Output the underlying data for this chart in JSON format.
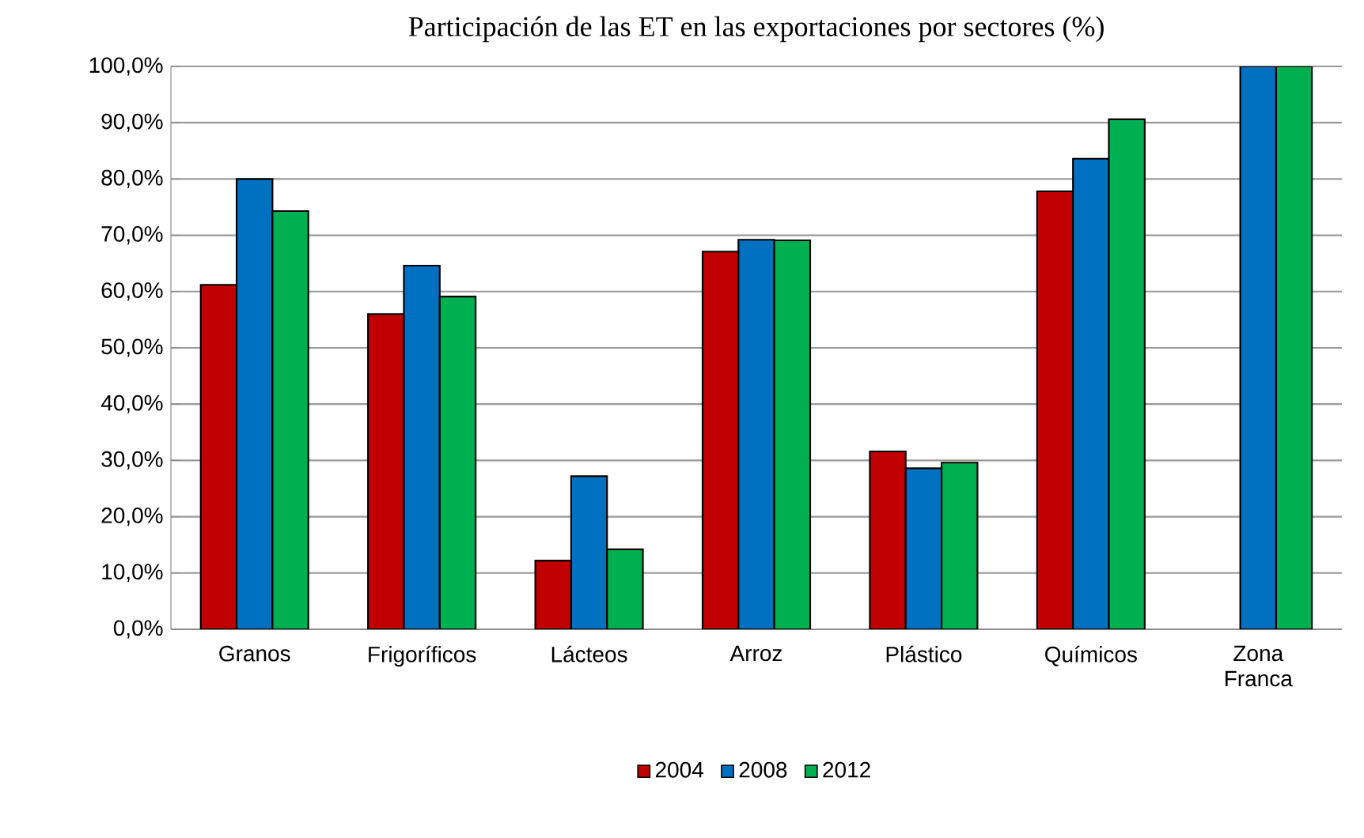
{
  "chart_data": {
    "type": "bar",
    "title": "Participación de las ET en las exportaciones por sectores (%)",
    "categories": [
      "Granos",
      "Frigoríficos",
      "Lácteos",
      "Arroz",
      "Plástico",
      "Químicos",
      "Zona Franca"
    ],
    "series": [
      {
        "name": "2004",
        "color": "#c00000",
        "values": [
          61.2,
          56.0,
          12.2,
          67.1,
          31.6,
          77.8,
          null
        ]
      },
      {
        "name": "2008",
        "color": "#0070c0",
        "values": [
          80.0,
          64.6,
          27.2,
          69.2,
          28.6,
          83.6,
          100.0
        ]
      },
      {
        "name": "2012",
        "color": "#00b050",
        "values": [
          74.3,
          59.1,
          14.2,
          69.1,
          29.6,
          90.6,
          100.0
        ]
      }
    ],
    "ylim": [
      0,
      100
    ],
    "yticks": [
      {
        "value": 0,
        "label": "0,0%"
      },
      {
        "value": 10,
        "label": "10,0%"
      },
      {
        "value": 20,
        "label": "20,0%"
      },
      {
        "value": 30,
        "label": "30,0%"
      },
      {
        "value": 40,
        "label": "40,0%"
      },
      {
        "value": 50,
        "label": "50,0%"
      },
      {
        "value": 60,
        "label": "60,0%"
      },
      {
        "value": 70,
        "label": "70,0%"
      },
      {
        "value": 80,
        "label": "80,0%"
      },
      {
        "value": 90,
        "label": "90,0%"
      },
      {
        "value": 100,
        "label": "100,0%"
      }
    ],
    "grid": "y",
    "legend": "bottom"
  }
}
